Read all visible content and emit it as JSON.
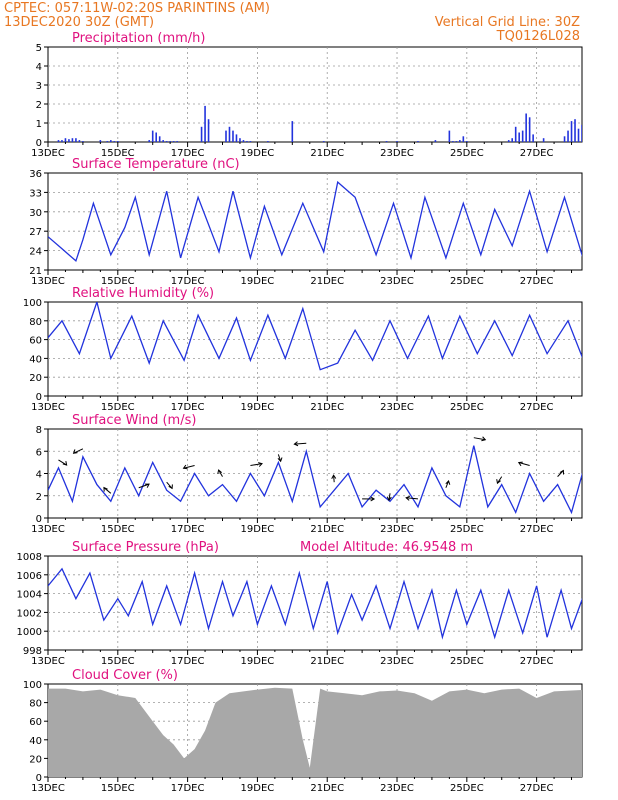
{
  "header": {
    "line1": "CPTEC:   057:11W-02:20S   PARINTINS (AM)",
    "line2": "13DEC2020 30Z (GMT)",
    "right1": "Vertical Grid Line: 30Z",
    "right2": "TQ0126L028"
  },
  "colors": {
    "header": "#e87722",
    "panel_title": "#e0117f",
    "series": "#2233dd",
    "cloud": "#a8a8a8"
  },
  "chart_data": [
    {
      "type": "bar",
      "title": "Precipitation  (mm/h)",
      "ylim": [
        0,
        5
      ],
      "yticks": [
        "0",
        "1",
        "2",
        "3",
        "4",
        "5"
      ],
      "xticks": [
        "13DEC",
        "15DEC",
        "17DEC",
        "19DEC",
        "21DEC",
        "23DEC",
        "25DEC",
        "27DEC"
      ],
      "x": [
        0.3,
        0.4,
        0.5,
        0.6,
        0.7,
        0.8,
        0.9,
        1.0,
        1.5,
        1.7,
        1.8,
        1.9,
        2.0,
        2.9,
        3.0,
        3.1,
        3.2,
        3.3,
        3.4,
        3.5,
        3.6,
        3.7,
        4.4,
        4.5,
        4.6,
        5.1,
        5.2,
        5.3,
        5.4,
        5.5,
        5.6,
        5.7,
        5.8,
        6.3,
        7.0,
        7.9,
        9.7,
        10.0,
        10.6,
        11.1,
        11.5,
        11.6,
        11.7,
        11.8,
        11.9,
        12.0,
        13.2,
        13.3,
        13.4,
        13.5,
        13.6,
        13.7,
        13.8,
        13.9,
        14.2,
        14.8,
        14.9,
        15.0,
        15.1,
        15.2,
        15.3,
        15.4,
        15.5,
        16.0,
        16.4,
        18.0,
        19.1,
        19.8,
        20.0
      ],
      "values": [
        0.1,
        0.1,
        0.2,
        0.15,
        0.2,
        0.2,
        0.1,
        0.05,
        0.1,
        0.05,
        0.1,
        0.05,
        0.05,
        0.1,
        0.6,
        0.5,
        0.3,
        0.1,
        0.05,
        0.05,
        0.05,
        0.05,
        0.8,
        1.9,
        1.2,
        0.6,
        0.8,
        0.6,
        0.4,
        0.2,
        0.1,
        0.05,
        0.05,
        0.05,
        1.1,
        0.05,
        0.05,
        0.05,
        0.05,
        0.1,
        0.6,
        0.05,
        0.05,
        0.1,
        0.3,
        0.05,
        0.1,
        0.2,
        0.8,
        0.5,
        0.6,
        1.5,
        1.3,
        0.4,
        0.2,
        0.3,
        0.6,
        1.1,
        1.2,
        0.7,
        0.9,
        1.0,
        0.8,
        0.1,
        0.05,
        0.05,
        0.05,
        0.05,
        0.05
      ]
    },
    {
      "type": "line",
      "title": "Surface Temperature (nC)",
      "ylim": [
        21,
        37
      ],
      "yticks": [
        "21",
        "24",
        "27",
        "30",
        "33",
        "36"
      ],
      "xticks": [
        "13DEC",
        "15DEC",
        "17DEC",
        "19DEC",
        "21DEC",
        "23DEC",
        "25DEC",
        "27DEC"
      ],
      "x": [
        0,
        0.4,
        0.8,
        1.0,
        1.3,
        1.8,
        2.2,
        2.5,
        2.9,
        3.4,
        3.8,
        4.3,
        4.9,
        5.3,
        5.8,
        6.2,
        6.7,
        7.3,
        7.9,
        8.3,
        8.8,
        9.4,
        9.9,
        10.4,
        10.8,
        11.4,
        11.9,
        12.4,
        12.8,
        13.3,
        13.8,
        14.3,
        14.8,
        15.3,
        15.9,
        16.3,
        16.8,
        17.3,
        17.8,
        18.3,
        18.8,
        19.3,
        19.8,
        20.0
      ],
      "values": [
        26.5,
        24.5,
        22.5,
        26,
        32,
        23.5,
        28,
        33,
        23.5,
        34,
        23,
        33,
        24,
        34,
        23,
        31.5,
        23.5,
        32,
        24,
        35.5,
        33,
        23.5,
        32,
        23,
        33,
        23,
        32,
        23.5,
        31,
        25,
        34,
        24,
        33,
        23.5,
        33.5,
        23.5,
        34.5,
        24,
        35.5,
        24,
        35,
        24,
        35,
        33
      ]
    },
    {
      "type": "line",
      "title": "Relative Humidity  (%)",
      "ylim": [
        0,
        100
      ],
      "yticks": [
        "0",
        "20",
        "40",
        "60",
        "80",
        "100"
      ],
      "xticks": [
        "13DEC",
        "15DEC",
        "17DEC",
        "19DEC",
        "21DEC",
        "23DEC",
        "25DEC",
        "27DEC"
      ],
      "x": [
        0,
        0.4,
        0.9,
        1.4,
        1.8,
        2.4,
        2.9,
        3.3,
        3.9,
        4.3,
        4.9,
        5.4,
        5.8,
        6.3,
        6.8,
        7.3,
        7.8,
        8.3,
        8.8,
        9.3,
        9.8,
        10.3,
        10.9,
        11.3,
        11.8,
        12.3,
        12.8,
        13.3,
        13.8,
        14.3,
        14.9,
        15.3,
        15.8,
        16.4,
        16.8,
        17.3,
        17.8,
        18.3,
        18.8,
        19.4,
        19.8,
        20.0
      ],
      "values": [
        62,
        80,
        45,
        100,
        40,
        85,
        35,
        80,
        38,
        86,
        40,
        83,
        38,
        86,
        40,
        93,
        28,
        35,
        70,
        38,
        80,
        40,
        85,
        40,
        85,
        45,
        80,
        43,
        86,
        45,
        80,
        42,
        86,
        45,
        82,
        42,
        85,
        40,
        80,
        28,
        30,
        35
      ]
    },
    {
      "type": "line",
      "title": "Surface Wind  (m/s)",
      "ylim": [
        0,
        8
      ],
      "yticks": [
        "0",
        "2",
        "4",
        "6",
        "8"
      ],
      "xticks": [
        "13DEC",
        "15DEC",
        "17DEC",
        "19DEC",
        "21DEC",
        "23DEC",
        "25DEC",
        "27DEC"
      ],
      "x": [
        0,
        0.3,
        0.7,
        1.0,
        1.4,
        1.8,
        2.2,
        2.6,
        3.0,
        3.4,
        3.8,
        4.2,
        4.6,
        5.0,
        5.4,
        5.8,
        6.2,
        6.6,
        7.0,
        7.4,
        7.8,
        8.2,
        8.6,
        9.0,
        9.4,
        9.8,
        10.2,
        10.6,
        11.0,
        11.4,
        11.8,
        12.2,
        12.6,
        13.0,
        13.4,
        13.8,
        14.2,
        14.6,
        15.0,
        15.4,
        15.8,
        16.2,
        16.6,
        17.0,
        17.4,
        17.8,
        18.2,
        18.6,
        19.0,
        19.4,
        19.8,
        20.0
      ],
      "values": [
        2.5,
        4.5,
        1.5,
        5.5,
        3,
        1.5,
        4.5,
        2,
        5,
        2.5,
        1.5,
        4,
        2,
        3,
        1.5,
        4,
        2,
        5,
        1.5,
        6,
        1,
        2.5,
        4,
        1,
        2.5,
        1.5,
        3,
        1,
        4.5,
        2,
        1,
        6.5,
        1,
        3,
        0.5,
        4,
        1.5,
        3,
        0.5,
        5,
        2,
        4,
        1,
        5.5,
        2,
        4,
        1,
        6.5,
        2,
        5,
        2.5,
        2
      ]
    },
    {
      "type": "line",
      "title": "Surface Pressure (hPa)",
      "annotation": "Model Altitude: 46.9548  m",
      "ylim": [
        997,
        1008
      ],
      "yticks": [
        "998",
        "1000",
        "1002",
        "1004",
        "1006",
        "1008"
      ],
      "xticks": [
        "13DEC",
        "15DEC",
        "17DEC",
        "19DEC",
        "21DEC",
        "23DEC",
        "25DEC",
        "27DEC"
      ],
      "x": [
        0,
        0.4,
        0.8,
        1.2,
        1.6,
        2.0,
        2.3,
        2.7,
        3.0,
        3.4,
        3.8,
        4.2,
        4.6,
        5.0,
        5.3,
        5.7,
        6.0,
        6.4,
        6.8,
        7.2,
        7.6,
        8.0,
        8.3,
        8.7,
        9.0,
        9.4,
        9.8,
        10.2,
        10.6,
        11.0,
        11.3,
        11.7,
        12.0,
        12.4,
        12.8,
        13.2,
        13.6,
        14.0,
        14.3,
        14.7,
        15.0,
        15.4,
        15.8,
        16.2,
        16.6,
        17.0,
        17.3,
        17.7,
        18.0,
        18.4,
        18.8,
        19.2,
        19.6,
        20.0
      ],
      "values": [
        1004.5,
        1006.5,
        1003,
        1006,
        1000.5,
        1003,
        1001,
        1005,
        1000,
        1004.5,
        1000,
        1006,
        999.5,
        1005,
        1001,
        1005,
        1000,
        1004.5,
        1000,
        1006,
        999.5,
        1005,
        999,
        1003.5,
        1000.5,
        1004.5,
        999.5,
        1005,
        999.5,
        1004,
        998.5,
        1004,
        1000,
        1004,
        998.5,
        1004,
        999,
        1004.5,
        998.5,
        1004,
        999.5,
        1004,
        998.5,
        1005,
        999,
        1003.5,
        998.5,
        1004,
        999.5,
        1004,
        998,
        1003.5,
        998,
        999
      ]
    },
    {
      "type": "area",
      "title": "Cloud Cover  (%)",
      "ylim": [
        0,
        100
      ],
      "yticks": [
        "0",
        "20",
        "40",
        "60",
        "80",
        "100"
      ],
      "xticks": [
        "13DEC",
        "15DEC",
        "17DEC",
        "19DEC",
        "21DEC",
        "23DEC",
        "25DEC",
        "27DEC"
      ],
      "x": [
        0,
        0.5,
        1.0,
        1.5,
        2.0,
        2.5,
        3.0,
        3.3,
        3.6,
        3.9,
        4.2,
        4.5,
        4.8,
        5.2,
        5.6,
        6.0,
        6.5,
        7.0,
        7.3,
        7.5,
        7.8,
        8.0,
        8.5,
        9.0,
        9.5,
        10.0,
        10.5,
        11.0,
        11.5,
        12.0,
        12.5,
        13.0,
        13.5,
        14.0,
        14.5,
        15.0,
        15.5,
        16.0,
        16.5,
        17.0,
        17.5,
        18.0,
        18.5,
        19.0,
        19.5,
        20.0
      ],
      "values": [
        95,
        95,
        92,
        94,
        88,
        85,
        60,
        45,
        35,
        20,
        30,
        50,
        80,
        90,
        92,
        94,
        96,
        95,
        40,
        10,
        95,
        92,
        90,
        88,
        92,
        93,
        90,
        82,
        92,
        94,
        90,
        94,
        95,
        85,
        92,
        93,
        94,
        95,
        96,
        95,
        94,
        92,
        86,
        90,
        85,
        88
      ]
    }
  ]
}
